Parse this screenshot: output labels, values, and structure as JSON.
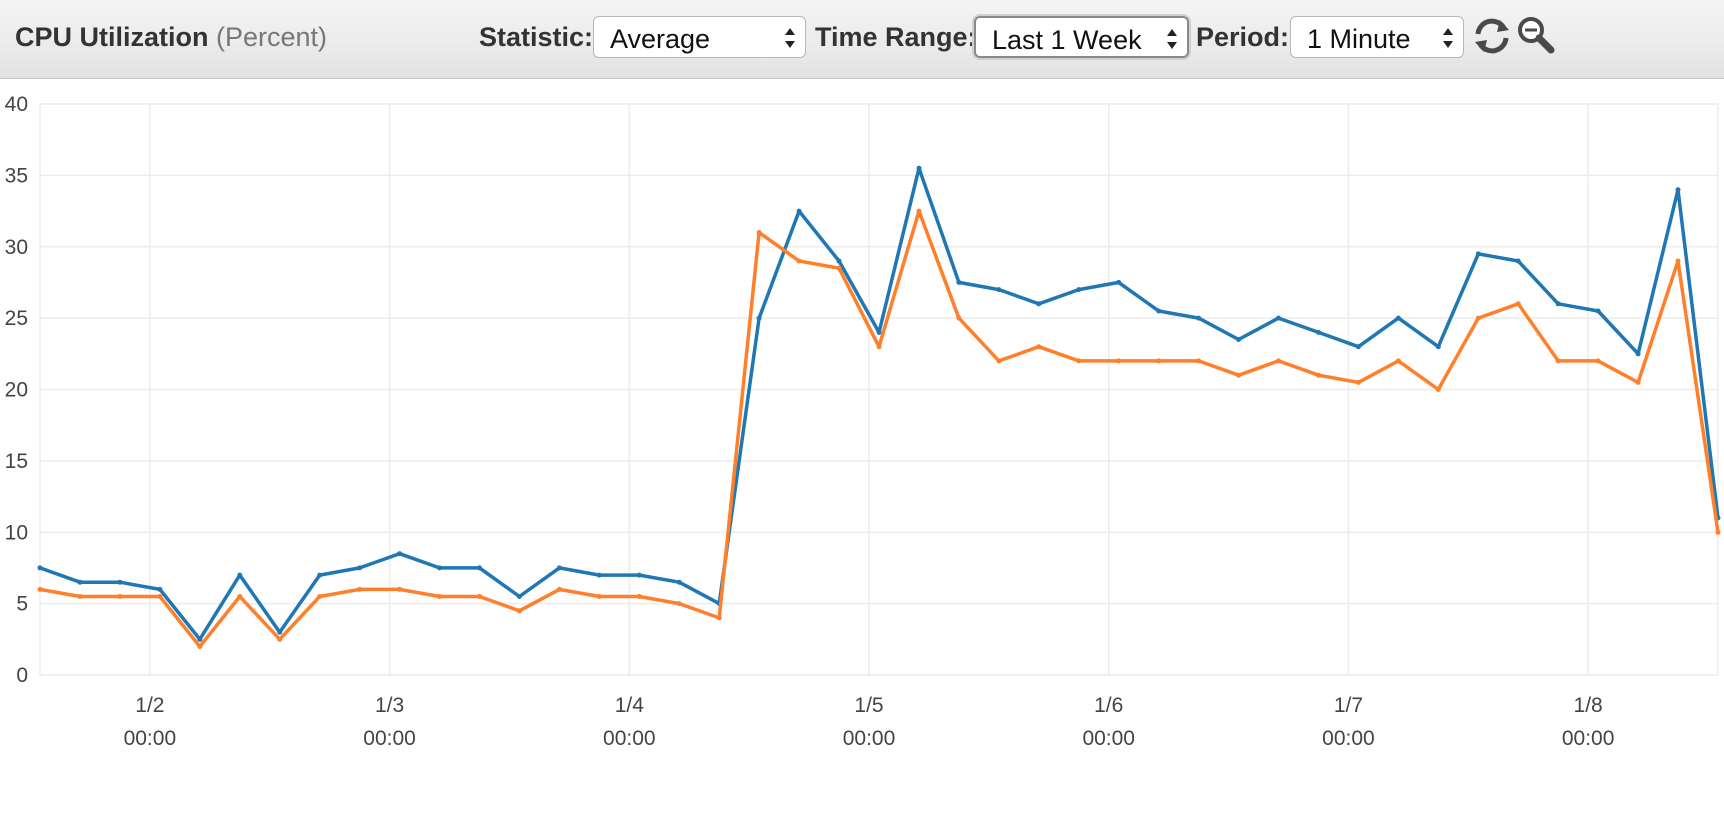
{
  "toolbar": {
    "title": "CPU Utilization",
    "unit": "(Percent)",
    "statistic": {
      "label": "Statistic:",
      "value": "Average"
    },
    "time_range": {
      "label": "Time Range:",
      "value": "Last 1 Week"
    },
    "period": {
      "label": "Period:",
      "value": "1 Minute"
    },
    "refresh_icon": "refresh-icon",
    "zoom_icon": "zoom-icon"
  },
  "chart_data": {
    "type": "line",
    "title": "CPU Utilization (Percent)",
    "xlabel": "",
    "ylabel": "",
    "ylim": [
      0,
      40
    ],
    "y_ticks": [
      "0",
      "5",
      "10",
      "15",
      "20",
      "25",
      "30",
      "35",
      "40"
    ],
    "x_ticks": [
      {
        "date": "1/2",
        "time": "00:00"
      },
      {
        "date": "1/3",
        "time": "00:00"
      },
      {
        "date": "1/4",
        "time": "00:00"
      },
      {
        "date": "1/5",
        "time": "00:00"
      },
      {
        "date": "1/6",
        "time": "00:00"
      },
      {
        "date": "1/7",
        "time": "00:00"
      },
      {
        "date": "1/8",
        "time": "00:00"
      }
    ],
    "xlim": [
      "1/1 13:00",
      "1/8 13:00"
    ],
    "grid": true,
    "legend": "none",
    "series": [
      {
        "color": "#1f77b4",
        "x": [
          "1/1 13:00",
          "1/1 17:00",
          "1/1 21:00",
          "1/2 01:00",
          "1/2 05:00",
          "1/2 09:00",
          "1/2 13:00",
          "1/2 17:00",
          "1/2 21:00",
          "1/3 01:00",
          "1/3 05:00",
          "1/3 09:00",
          "1/3 13:00",
          "1/3 17:00",
          "1/3 21:00",
          "1/4 01:00",
          "1/4 05:00",
          "1/4 09:00",
          "1/4 13:00",
          "1/4 17:00",
          "1/4 21:00",
          "1/5 01:00",
          "1/5 05:00",
          "1/5 09:00",
          "1/5 13:00",
          "1/5 17:00",
          "1/5 21:00",
          "1/6 01:00",
          "1/6 05:00",
          "1/6 09:00",
          "1/6 13:00",
          "1/6 17:00",
          "1/6 21:00",
          "1/7 01:00",
          "1/7 05:00",
          "1/7 09:00",
          "1/7 13:00",
          "1/7 17:00",
          "1/7 21:00",
          "1/8 01:00",
          "1/8 05:00",
          "1/8 09:00",
          "1/8 13:00"
        ],
        "y": [
          7.5,
          6.5,
          6.5,
          6.0,
          2.5,
          7.0,
          3.0,
          7.0,
          7.5,
          8.5,
          7.5,
          7.5,
          5.5,
          7.5,
          7.0,
          7.0,
          6.5,
          5.0,
          25.0,
          32.5,
          29.0,
          24.0,
          35.5,
          27.5,
          27.0,
          26.0,
          27.0,
          27.5,
          25.5,
          25.0,
          23.5,
          25.0,
          24.0,
          23.0,
          25.0,
          23.0,
          29.5,
          29.0,
          26.0,
          25.5,
          22.5,
          34.0,
          11.0
        ]
      },
      {
        "color": "#ff7f2a",
        "x": [
          "1/1 13:00",
          "1/1 17:00",
          "1/1 21:00",
          "1/2 01:00",
          "1/2 05:00",
          "1/2 09:00",
          "1/2 13:00",
          "1/2 17:00",
          "1/2 21:00",
          "1/3 01:00",
          "1/3 05:00",
          "1/3 09:00",
          "1/3 13:00",
          "1/3 17:00",
          "1/3 21:00",
          "1/4 01:00",
          "1/4 05:00",
          "1/4 09:00",
          "1/4 13:00",
          "1/4 17:00",
          "1/4 21:00",
          "1/5 01:00",
          "1/5 05:00",
          "1/5 09:00",
          "1/5 13:00",
          "1/5 17:00",
          "1/5 21:00",
          "1/6 01:00",
          "1/6 05:00",
          "1/6 09:00",
          "1/6 13:00",
          "1/6 17:00",
          "1/6 21:00",
          "1/7 01:00",
          "1/7 05:00",
          "1/7 09:00",
          "1/7 13:00",
          "1/7 17:00",
          "1/7 21:00",
          "1/8 01:00",
          "1/8 05:00",
          "1/8 09:00",
          "1/8 13:00"
        ],
        "y": [
          6.0,
          5.5,
          5.5,
          5.5,
          2.0,
          5.5,
          2.5,
          5.5,
          6.0,
          6.0,
          5.5,
          5.5,
          4.5,
          6.0,
          5.5,
          5.5,
          5.0,
          4.0,
          31.0,
          29.0,
          28.5,
          23.0,
          32.5,
          25.0,
          22.0,
          23.0,
          22.0,
          22.0,
          22.0,
          22.0,
          21.0,
          22.0,
          21.0,
          20.5,
          22.0,
          20.0,
          25.0,
          26.0,
          22.0,
          22.0,
          20.5,
          29.0,
          10.0
        ]
      }
    ]
  }
}
